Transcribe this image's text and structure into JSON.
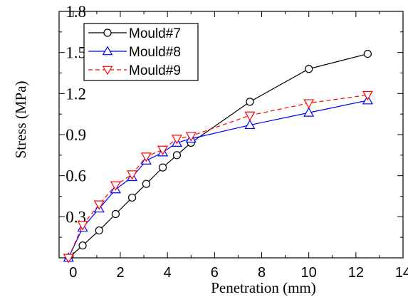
{
  "chart_data": {
    "type": "line",
    "xlabel": "Penetration (mm)",
    "ylabel": "Stress (MPa)",
    "xlim": [
      0,
      14
    ],
    "ylim": [
      0,
      1.8
    ],
    "x_ticks": [
      0,
      2,
      4,
      6,
      8,
      10,
      12,
      14
    ],
    "y_ticks": [
      0.3,
      0.6,
      0.9,
      1.2,
      1.5,
      1.8
    ],
    "x_tick_labels": [
      "0",
      "2",
      "4",
      "6",
      "8",
      "10",
      "12",
      "14"
    ],
    "y_tick_labels": [
      "0.3",
      "0.6",
      "0.9",
      "1.2",
      "1.5",
      "1.8"
    ],
    "grid": false,
    "legend_position": "top-left",
    "series": [
      {
        "name": "Mould#7",
        "color": "#000000",
        "line_style": "solid",
        "marker": "circle",
        "x": [
          -0.2,
          0.4,
          1.1,
          1.8,
          2.5,
          3.1,
          3.8,
          4.4,
          5.0,
          7.5,
          10.0,
          12.5
        ],
        "y": [
          0.0,
          0.09,
          0.2,
          0.32,
          0.44,
          0.54,
          0.66,
          0.75,
          0.84,
          1.14,
          1.38,
          1.49
        ]
      },
      {
        "name": "Mould#8",
        "color": "#0000ff",
        "line_style": "solid",
        "marker": "triangle-up",
        "x": [
          -0.2,
          0.4,
          1.1,
          1.8,
          2.5,
          3.1,
          3.8,
          4.4,
          5.0,
          7.5,
          10.0,
          12.5
        ],
        "y": [
          0.0,
          0.22,
          0.36,
          0.5,
          0.59,
          0.71,
          0.77,
          0.84,
          0.87,
          0.97,
          1.06,
          1.15
        ]
      },
      {
        "name": "Mould#9",
        "color": "#ff0000",
        "line_style": "dashed",
        "marker": "triangle-down",
        "x": [
          -0.2,
          0.4,
          1.1,
          1.8,
          2.5,
          3.1,
          3.8,
          4.4,
          5.0,
          7.5,
          10.0,
          12.5
        ],
        "y": [
          0.0,
          0.24,
          0.39,
          0.53,
          0.61,
          0.74,
          0.79,
          0.87,
          0.89,
          1.04,
          1.13,
          1.19
        ]
      }
    ]
  }
}
